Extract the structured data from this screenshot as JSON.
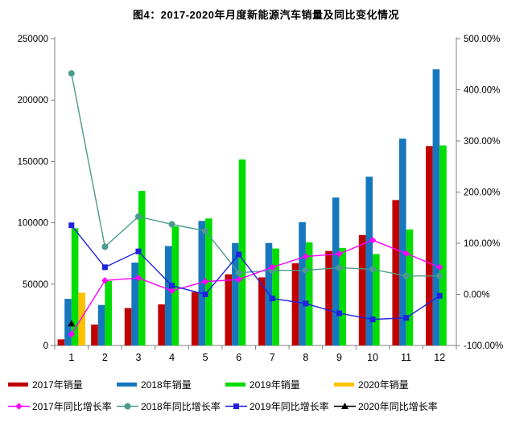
{
  "title": "图4：2017-2020年月度新能源汽车销量及同比变化情况",
  "chart_data": {
    "type": "bar+line",
    "categories": [
      "1",
      "2",
      "3",
      "4",
      "5",
      "6",
      "7",
      "8",
      "9",
      "10",
      "11",
      "12"
    ],
    "left_axis": {
      "min": 0,
      "max": 250000,
      "step": 50000,
      "tick_labels": [
        "0",
        "50000",
        "100000",
        "150000",
        "200000",
        "250000"
      ]
    },
    "right_axis": {
      "min": -100,
      "max": 500,
      "step": 100,
      "tick_labels": [
        "-100.00%",
        "0.00%",
        "100.00%",
        "200.00%",
        "300.00%",
        "400.00%",
        "500.00%"
      ]
    },
    "grid": false,
    "legend_position": "bottom",
    "bar_series": [
      {
        "name": "2017年销量",
        "color": "#c00000",
        "values": [
          5000,
          17000,
          30500,
          33500,
          43500,
          58000,
          55500,
          67000,
          77000,
          90000,
          118500,
          162500
        ]
      },
      {
        "name": "2018年销量",
        "color": "#1577be",
        "values": [
          38000,
          33000,
          67500,
          81000,
          101500,
          83500,
          83500,
          100500,
          120500,
          137500,
          168500,
          225000
        ]
      },
      {
        "name": "2019年销量",
        "color": "#00dd00",
        "values": [
          95500,
          52500,
          126000,
          97000,
          103500,
          151500,
          79000,
          84000,
          79500,
          74500,
          94500,
          163000
        ]
      },
      {
        "name": "2020年销量",
        "color": "#ffc000",
        "values": [
          43000,
          null,
          null,
          null,
          null,
          null,
          null,
          null,
          null,
          null,
          null,
          null
        ]
      }
    ],
    "line_series": [
      {
        "name": "2017年同比增长率",
        "color": "#ff00ff",
        "marker": "diamond",
        "values_pct": [
          -78,
          27,
          32,
          7,
          25,
          29,
          53,
          74,
          79,
          106,
          80,
          53
        ]
      },
      {
        "name": "2018年同比增长率",
        "color": "#4a9c8c",
        "marker": "circle",
        "values_pct": [
          432,
          93,
          152,
          137,
          124,
          42,
          47,
          47,
          52,
          49,
          36,
          36
        ]
      },
      {
        "name": "2019年同比增长率",
        "color": "#2121de",
        "marker": "square",
        "values_pct": [
          135,
          53,
          84,
          17,
          0,
          78,
          -8,
          -18,
          -37,
          -49,
          -46,
          -3
        ]
      },
      {
        "name": "2020年同比增长率",
        "color": "#000000",
        "marker": "triangle",
        "values_pct": [
          -57,
          null,
          null,
          null,
          null,
          null,
          null,
          null,
          null,
          null,
          null,
          null
        ]
      }
    ],
    "axis_color": "#808080"
  }
}
